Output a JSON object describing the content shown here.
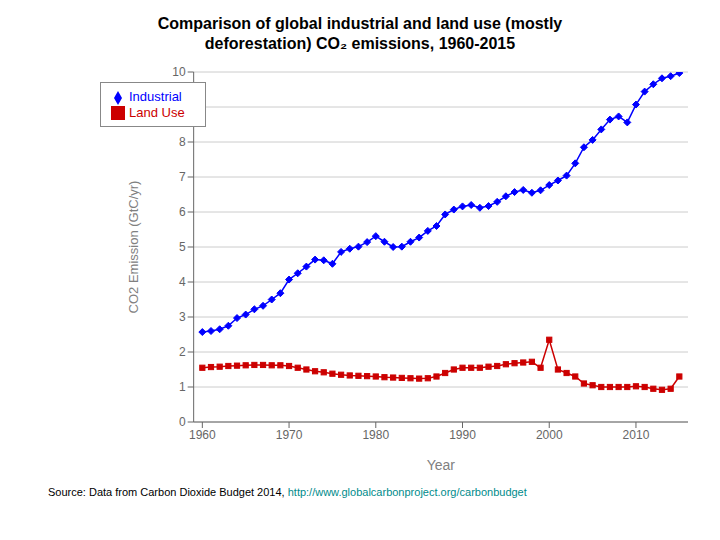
{
  "chart_data": {
    "type": "line",
    "title": "Comparison of global industrial and land use (mostly\ndeforestation) CO₂ emissions, 1960-2015",
    "x_label": "Year",
    "y_label": "CO2 Emission (GtC/yr)",
    "x": [
      1960,
      1961,
      1962,
      1963,
      1964,
      1965,
      1966,
      1967,
      1968,
      1969,
      1970,
      1971,
      1972,
      1973,
      1974,
      1975,
      1976,
      1977,
      1978,
      1979,
      1980,
      1981,
      1982,
      1983,
      1984,
      1985,
      1986,
      1987,
      1988,
      1989,
      1990,
      1991,
      1992,
      1993,
      1994,
      1995,
      1996,
      1997,
      1998,
      1999,
      2000,
      2001,
      2002,
      2003,
      2004,
      2005,
      2006,
      2007,
      2008,
      2009,
      2010,
      2011,
      2012,
      2013,
      2014,
      2015
    ],
    "series": [
      {
        "name": "Industrial",
        "color": "#0000FF",
        "marker": "diamond",
        "values": [
          2.57,
          2.6,
          2.65,
          2.75,
          2.97,
          3.07,
          3.22,
          3.32,
          3.5,
          3.68,
          4.07,
          4.25,
          4.44,
          4.64,
          4.62,
          4.52,
          4.86,
          4.95,
          5.01,
          5.14,
          5.31,
          5.15,
          5.0,
          5.01,
          5.15,
          5.27,
          5.46,
          5.6,
          5.93,
          6.07,
          6.16,
          6.2,
          6.12,
          6.17,
          6.29,
          6.45,
          6.57,
          6.63,
          6.55,
          6.62,
          6.77,
          6.9,
          7.04,
          7.39,
          7.85,
          8.06,
          8.36,
          8.64,
          8.73,
          8.56,
          9.07,
          9.44,
          9.65,
          9.82,
          9.88,
          9.97
        ]
      },
      {
        "name": "Land Use",
        "color": "#CC0000",
        "marker": "square",
        "values": [
          1.55,
          1.57,
          1.58,
          1.6,
          1.61,
          1.62,
          1.63,
          1.63,
          1.62,
          1.62,
          1.6,
          1.55,
          1.5,
          1.45,
          1.42,
          1.38,
          1.35,
          1.33,
          1.32,
          1.31,
          1.3,
          1.28,
          1.27,
          1.26,
          1.25,
          1.24,
          1.25,
          1.3,
          1.4,
          1.5,
          1.55,
          1.55,
          1.55,
          1.58,
          1.6,
          1.65,
          1.68,
          1.7,
          1.72,
          1.55,
          2.35,
          1.5,
          1.4,
          1.3,
          1.1,
          1.05,
          1.0,
          1.0,
          1.0,
          1.0,
          1.02,
          1.0,
          0.95,
          0.92,
          0.95,
          1.3
        ]
      }
    ],
    "xlim": [
      1959,
      2016
    ],
    "xticks": [
      1960,
      1970,
      1980,
      1990,
      2000,
      2010
    ],
    "ylim": [
      0,
      10
    ],
    "yticks": [
      0,
      1,
      2,
      3,
      4,
      5,
      6,
      7,
      8,
      9,
      10
    ],
    "grid": "y",
    "legend": "upper left",
    "annotations": [
      {
        "text": "Source: Data from Carbon Dioxide Budget 2014, ",
        "color": "#000000"
      },
      {
        "text": "http://www.globalcarbonproject.org/carbonbudget",
        "color": "#008B8B"
      }
    ]
  }
}
